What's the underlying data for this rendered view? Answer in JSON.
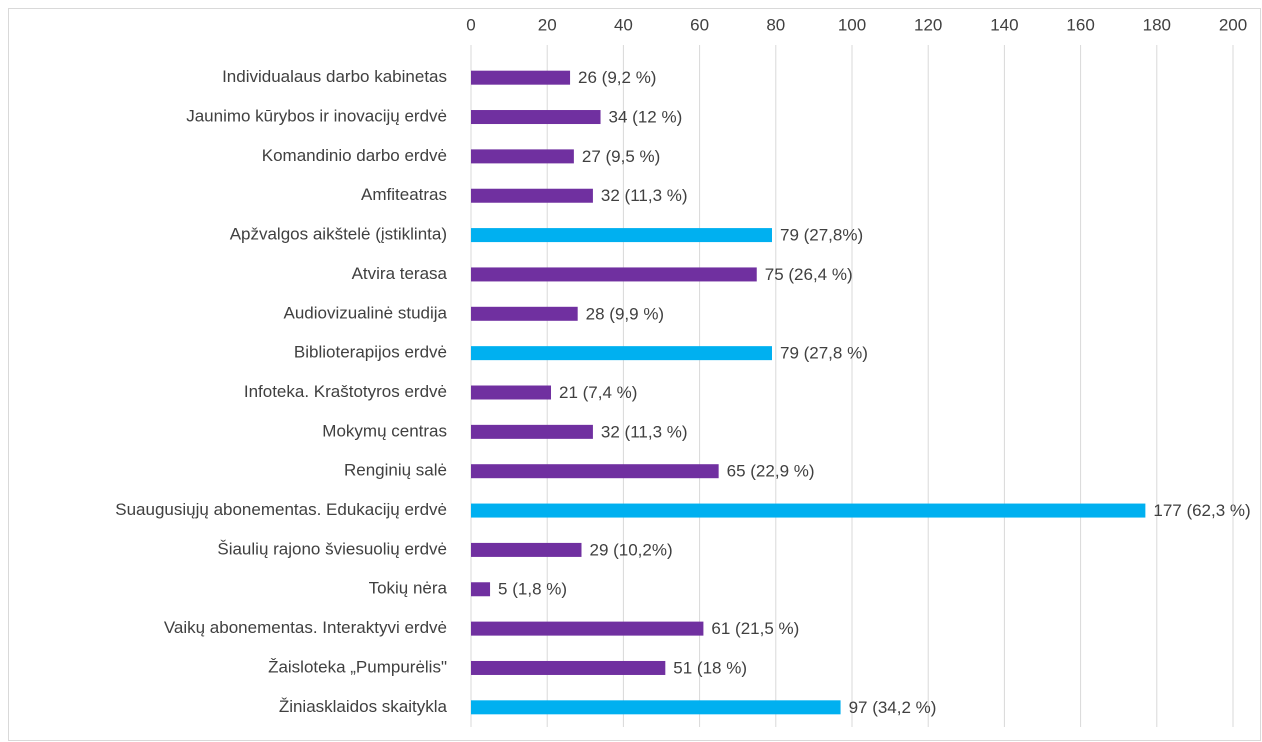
{
  "chart_data": {
    "type": "bar",
    "orientation": "horizontal",
    "categories": [
      "Individualaus darbo kabinetas",
      "Jaunimo kūrybos ir inovacijų erdvė",
      "Komandinio darbo erdvė",
      "Amfiteatras",
      "Apžvalgos aikštelė (įstiklinta)",
      "Atvira terasa",
      "Audiovizualinė studija",
      "Biblioterapijos erdvė",
      "Infoteka. Kraštotyros erdvė",
      "Mokymų centras",
      "Renginių salė",
      "Suaugusiųjų abonementas. Edukacijų erdvė",
      "Šiaulių rajono šviesuolių erdvė",
      "Tokių nėra",
      "Vaikų abonementas. Interaktyvi erdvė",
      "Žaisloteka „Pumpurėlis\"",
      "Žiniasklaidos skaitykla"
    ],
    "values": [
      26,
      34,
      27,
      32,
      79,
      75,
      28,
      79,
      21,
      32,
      65,
      177,
      29,
      5,
      61,
      51,
      97
    ],
    "value_labels": [
      "26 (9,2 %)",
      "34 (12 %)",
      "27 (9,5 %)",
      "32 (11,3 %)",
      "79 (27,8%)",
      "75 (26,4 %)",
      "28 (9,9 %)",
      "79 (27,8 %)",
      "21 (7,4 %)",
      "32 (11,3 %)",
      "65 (22,9 %)",
      "177 (62,3 %)",
      "29 (10,2%)",
      "5 (1,8 %)",
      "61 (21,5 %)",
      "51 (18 %)",
      "97 (34,2 %)"
    ],
    "colors": [
      "#7030a0",
      "#7030a0",
      "#7030a0",
      "#7030a0",
      "#00b0f0",
      "#7030a0",
      "#7030a0",
      "#00b0f0",
      "#7030a0",
      "#7030a0",
      "#7030a0",
      "#00b0f0",
      "#7030a0",
      "#7030a0",
      "#7030a0",
      "#7030a0",
      "#00b0f0"
    ],
    "xlim": [
      0,
      200
    ],
    "xticks": [
      0,
      20,
      40,
      60,
      80,
      100,
      120,
      140,
      160,
      180,
      200
    ],
    "grid": true
  }
}
